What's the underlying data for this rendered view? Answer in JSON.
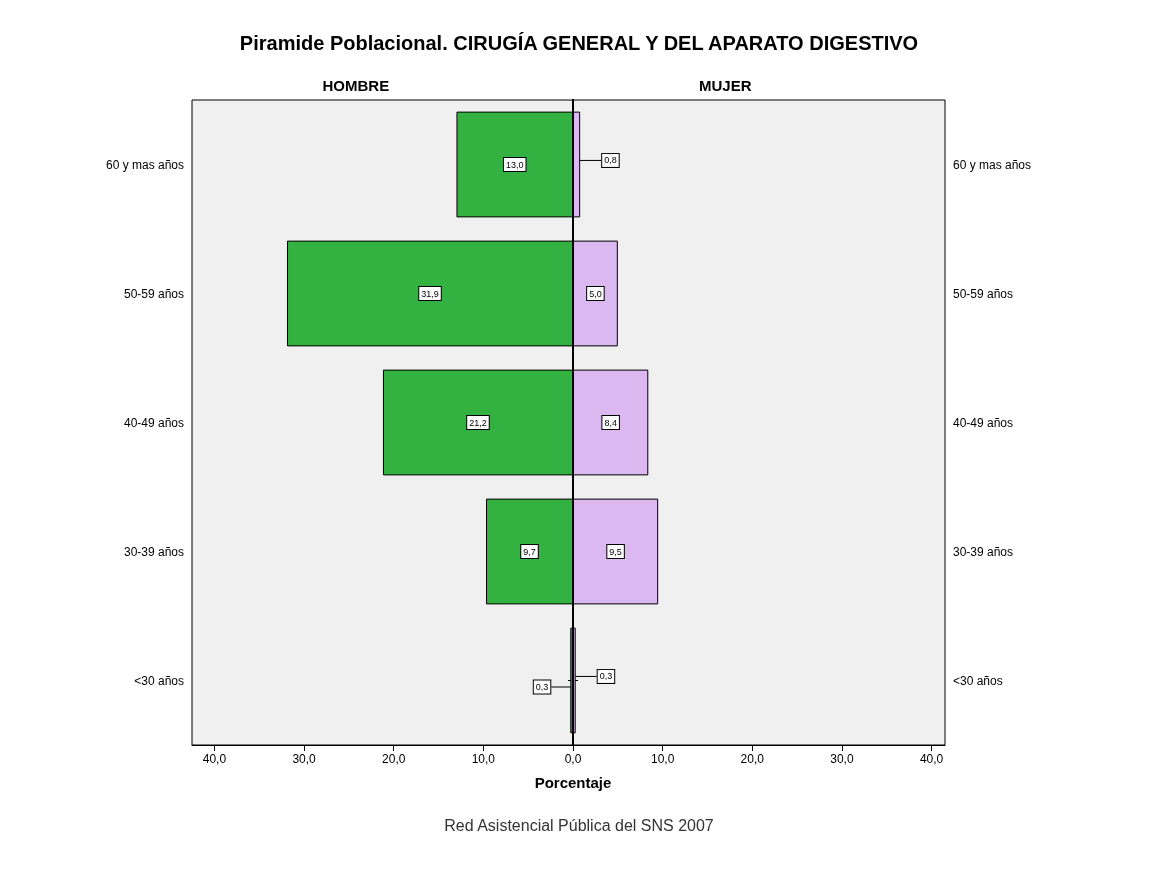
{
  "chart_data": [
    {
      "type": "bar",
      "orientation": "horizontal",
      "title": "Piramide Poblacional.  CIRUGÍA GENERAL Y DEL APARATO DIGESTIVO",
      "xlabel": "Porcentaje",
      "categories": [
        "60 y mas años",
        "50-59 años",
        "40-49 años",
        "30-39 años",
        "<30 años"
      ],
      "series": [
        {
          "name": "HOMBRE",
          "color": "#33b241",
          "values": [
            13.0,
            31.9,
            21.2,
            9.7,
            0.3
          ],
          "value_labels": [
            "13,0",
            "31,9",
            "21,2",
            "9,7",
            "0,3"
          ]
        }
      ],
      "xlim": [
        42.5,
        0
      ],
      "xticks": [
        {
          "value": 40,
          "label": "40,0"
        },
        {
          "value": 30,
          "label": "30,0"
        },
        {
          "value": 20,
          "label": "20,0"
        },
        {
          "value": 10,
          "label": "10,0"
        }
      ],
      "grid": false,
      "legend": false,
      "annotations": [
        "Red Asistencial Pública del SNS 2007"
      ]
    },
    {
      "type": "bar",
      "orientation": "horizontal",
      "categories": [
        "60 y mas años",
        "50-59 años",
        "40-49 años",
        "30-39 años",
        "<30 años"
      ],
      "series": [
        {
          "name": "MUJER",
          "color": "#dbb8f0",
          "values": [
            0.8,
            5.0,
            8.4,
            9.5,
            0.3
          ],
          "value_labels": [
            "0,8",
            "5,0",
            "8,4",
            "9,5",
            "0,3"
          ]
        }
      ],
      "xlim": [
        0,
        41.5
      ],
      "xticks": [
        {
          "value": 0,
          "label": "0,0"
        },
        {
          "value": 10,
          "label": "10,0"
        },
        {
          "value": 20,
          "label": "20,0"
        },
        {
          "value": 30,
          "label": "30,0"
        },
        {
          "value": 40,
          "label": "40,0"
        }
      ],
      "grid": false,
      "legend": false
    }
  ]
}
